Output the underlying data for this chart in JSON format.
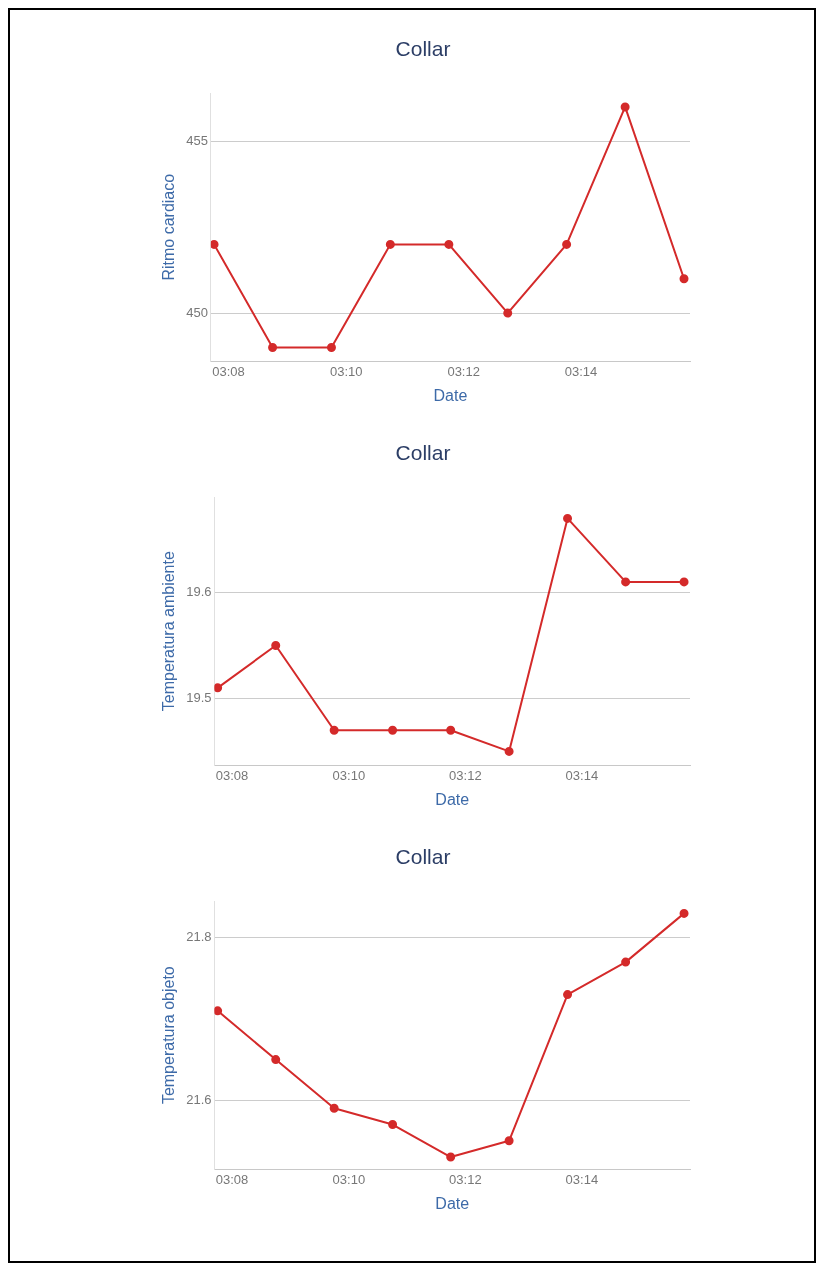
{
  "chart_data": [
    {
      "type": "line",
      "title": "Collar",
      "xlabel": "Date",
      "ylabel": "Ritmo cardiaco",
      "x": [
        3.1292,
        3.1458,
        3.1625,
        3.1792,
        3.1958,
        3.2125,
        3.2292,
        3.2458,
        3.2625
      ],
      "series": [
        {
          "color": "#d42a2a",
          "values": [
            452,
            449,
            449,
            452,
            452,
            450,
            452,
            456,
            451
          ]
        }
      ],
      "xlim": [
        3.1283,
        3.2642
      ],
      "xticks": [
        {
          "value": 3.1333,
          "label": "03:08"
        },
        {
          "value": 3.1667,
          "label": "03:10"
        },
        {
          "value": 3.2,
          "label": "03:12"
        },
        {
          "value": 3.2333,
          "label": "03:14"
        }
      ],
      "ylim": [
        448.6,
        456.4
      ],
      "yticks": [
        450,
        455
      ],
      "grid": "y",
      "legend": false,
      "marker": "circle",
      "line_style": "solid"
    },
    {
      "type": "line",
      "title": "Collar",
      "xlabel": "Date",
      "ylabel": "Temperatura ambiente",
      "x": [
        3.1292,
        3.1458,
        3.1625,
        3.1792,
        3.1958,
        3.2125,
        3.2292,
        3.2458,
        3.2625
      ],
      "series": [
        {
          "color": "#d42a2a",
          "values": [
            19.51,
            19.55,
            19.47,
            19.47,
            19.47,
            19.45,
            19.67,
            19.61,
            19.61
          ]
        }
      ],
      "xlim": [
        3.1283,
        3.2642
      ],
      "xticks": [
        {
          "value": 3.1333,
          "label": "03:08"
        },
        {
          "value": 3.1667,
          "label": "03:10"
        },
        {
          "value": 3.2,
          "label": "03:12"
        },
        {
          "value": 3.2333,
          "label": "03:14"
        }
      ],
      "ylim": [
        19.437,
        19.69
      ],
      "yticks": [
        19.5,
        19.6
      ],
      "grid": "y",
      "legend": false,
      "marker": "circle",
      "line_style": "solid"
    },
    {
      "type": "line",
      "title": "Collar",
      "xlabel": "Date",
      "ylabel": "Temperatura objeto",
      "x": [
        3.1292,
        3.1458,
        3.1625,
        3.1792,
        3.1958,
        3.2125,
        3.2292,
        3.2458,
        3.2625
      ],
      "series": [
        {
          "color": "#d42a2a",
          "values": [
            21.71,
            21.65,
            21.59,
            21.57,
            21.53,
            21.55,
            21.73,
            21.77,
            21.83
          ]
        }
      ],
      "xlim": [
        3.1283,
        3.2642
      ],
      "xticks": [
        {
          "value": 3.1333,
          "label": "03:08"
        },
        {
          "value": 3.1667,
          "label": "03:10"
        },
        {
          "value": 3.2,
          "label": "03:12"
        },
        {
          "value": 3.2333,
          "label": "03:14"
        }
      ],
      "ylim": [
        21.515,
        21.845
      ],
      "yticks": [
        21.6,
        21.8
      ],
      "grid": "y",
      "legend": false,
      "marker": "circle",
      "line_style": "solid"
    }
  ]
}
